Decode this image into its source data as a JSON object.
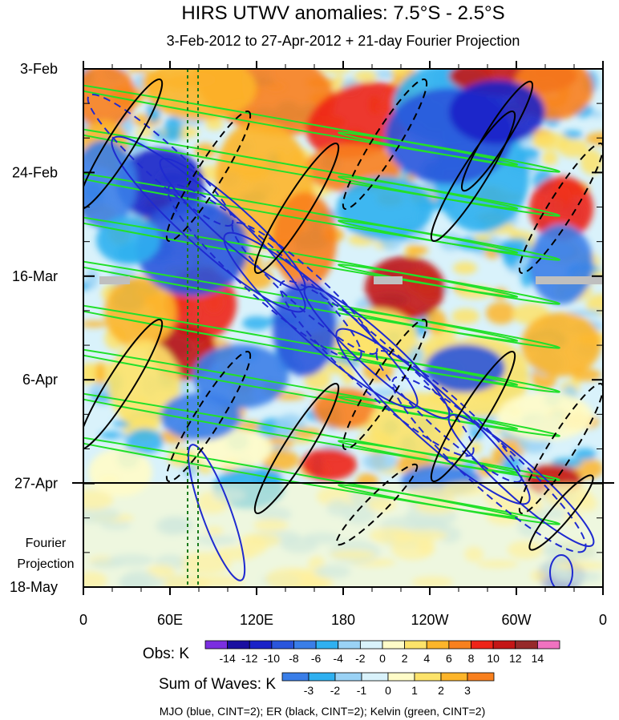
{
  "chart_data": {
    "type": "heatmap",
    "title": "HIRS UTWV anomalies: 7.5°S - 2.5°S",
    "subtitle": "3-Feb-2012 to 27-Apr-2012 + 21-day Fourier Projection",
    "x_ticks": [
      "0",
      "60E",
      "120E",
      "180",
      "120W",
      "60W",
      "0"
    ],
    "x_range": [
      0,
      360
    ],
    "y_ticks": [
      "3-Feb",
      "24-Feb",
      "16-Mar",
      "6-Apr",
      "27-Apr",
      "18-May"
    ],
    "y_range_days": [
      0,
      105
    ],
    "observation_end": "27-Apr",
    "projection_label": "Fourier Projection",
    "obs_colorbar": {
      "label": "Obs: K",
      "levels": [
        "-14",
        "-12",
        "-10",
        "-8",
        "-6",
        "-4",
        "-2",
        "0",
        "2",
        "4",
        "6",
        "8",
        "10",
        "12",
        "14"
      ],
      "colors": [
        "#7b2ee0",
        "#1a0fa0",
        "#1a22c8",
        "#2a55dc",
        "#3a7ee8",
        "#2fb0f0",
        "#9ad2f5",
        "#d9f2fb",
        "#fffcc8",
        "#fde36a",
        "#fdb52a",
        "#f8801e",
        "#ee2418",
        "#c41616",
        "#962a2a",
        "#f072c0"
      ]
    },
    "waves_colorbar": {
      "label": "Sum of Waves: K",
      "levels": [
        "-3",
        "-2",
        "-1",
        "0",
        "1",
        "2",
        "3"
      ],
      "colors": [
        "#3a7ee8",
        "#2fb0f0",
        "#9ad2f5",
        "#d9f2fb",
        "#fffcc8",
        "#fde36a",
        "#fdb52a",
        "#f8801e"
      ]
    },
    "caption": "MJO (blue, CINT=2); ER (black, CINT=2); Kelvin (green, CINT=2)",
    "contour_colors": {
      "mjo": "#1f2ad0",
      "er": "#000000",
      "kelvin": "#22e02a"
    }
  }
}
